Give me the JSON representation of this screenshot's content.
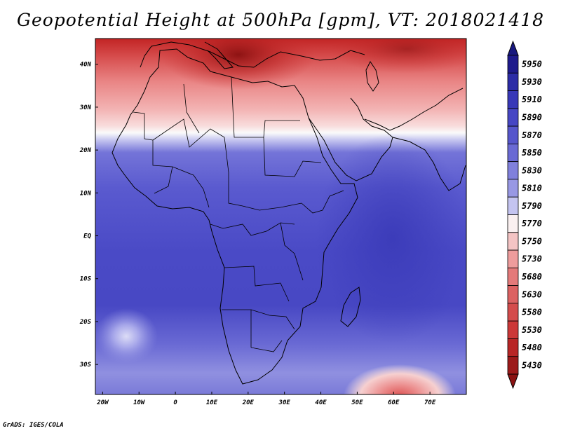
{
  "title": "Geopotential Height at 500hPa [gpm], VT: 2018021418",
  "credit": "GrADS: IGES/COLA",
  "map": {
    "lon_range": [
      -22,
      80
    ],
    "lat_range": [
      -37,
      46
    ],
    "lon_ticks": [
      {
        "value": -20,
        "label": "20W"
      },
      {
        "value": -10,
        "label": "10W"
      },
      {
        "value": 0,
        "label": "0"
      },
      {
        "value": 10,
        "label": "10E"
      },
      {
        "value": 20,
        "label": "20E"
      },
      {
        "value": 30,
        "label": "30E"
      },
      {
        "value": 40,
        "label": "40E"
      },
      {
        "value": 50,
        "label": "50E"
      },
      {
        "value": 60,
        "label": "60E"
      },
      {
        "value": 70,
        "label": "70E"
      }
    ],
    "lat_ticks": [
      {
        "value": 40,
        "label": "40N"
      },
      {
        "value": 30,
        "label": "30N"
      },
      {
        "value": 20,
        "label": "20N"
      },
      {
        "value": 10,
        "label": "10N"
      },
      {
        "value": 0,
        "label": "EQ"
      },
      {
        "value": -10,
        "label": "10S"
      },
      {
        "value": -20,
        "label": "20S"
      },
      {
        "value": -30,
        "label": "30S"
      }
    ]
  },
  "colorbar": {
    "levels": [
      {
        "label": "5950",
        "color": "#1e1a8c"
      },
      {
        "label": "5930",
        "color": "#2c2ca6"
      },
      {
        "label": "5910",
        "color": "#3838b8"
      },
      {
        "label": "5890",
        "color": "#4646c4"
      },
      {
        "label": "5870",
        "color": "#5656cc"
      },
      {
        "label": "5850",
        "color": "#6a6ad4"
      },
      {
        "label": "5830",
        "color": "#8080dc"
      },
      {
        "label": "5810",
        "color": "#9898e4"
      },
      {
        "label": "5790",
        "color": "#c4c4f0"
      },
      {
        "label": "5770",
        "color": "#faf0f0"
      },
      {
        "label": "5750",
        "color": "#f4c4c4"
      },
      {
        "label": "5730",
        "color": "#ee9c9c"
      },
      {
        "label": "5680",
        "color": "#e47a7a"
      },
      {
        "label": "5630",
        "color": "#dc6262"
      },
      {
        "label": "5580",
        "color": "#d44c4c"
      },
      {
        "label": "5530",
        "color": "#cc3838"
      },
      {
        "label": "5480",
        "color": "#b82626"
      },
      {
        "label": "5430",
        "color": "#9c1a1a"
      }
    ]
  }
}
